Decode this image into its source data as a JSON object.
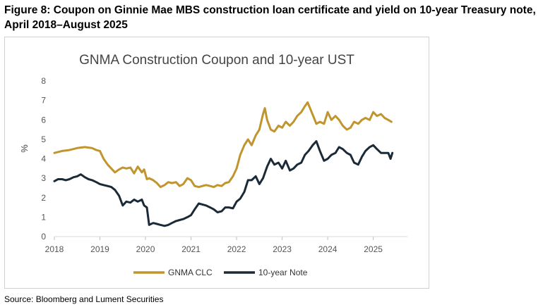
{
  "figure": {
    "caption": "Figure 8: Coupon on Ginnie Mae MBS construction loan certificate and yield on 10-year Treasury note, April 2018–August 2025",
    "source": "Source: Bloomberg and Lument Securities"
  },
  "chart_data": {
    "type": "line",
    "title": "GNMA Construction Coupon and 10-year UST",
    "xlabel": "",
    "ylabel": "%",
    "xlim": [
      2018,
      2025.75
    ],
    "ylim": [
      0,
      8
    ],
    "x_ticks": [
      "2018",
      "2019",
      "2020",
      "2021",
      "2022",
      "2023",
      "2024",
      "2025"
    ],
    "y_ticks": [
      "0",
      "1",
      "2",
      "3",
      "4",
      "5",
      "6",
      "7",
      "8"
    ],
    "grid": false,
    "legend": "bottom",
    "series": [
      {
        "name": "GNMA CLC",
        "color": "#c0952e",
        "points": [
          [
            2018.0,
            4.3
          ],
          [
            2018.17,
            4.4
          ],
          [
            2018.33,
            4.45
          ],
          [
            2018.5,
            4.55
          ],
          [
            2018.67,
            4.6
          ],
          [
            2018.83,
            4.55
          ],
          [
            2018.92,
            4.45
          ],
          [
            2019.0,
            4.4
          ],
          [
            2019.08,
            4.0
          ],
          [
            2019.17,
            3.7
          ],
          [
            2019.25,
            3.5
          ],
          [
            2019.33,
            3.3
          ],
          [
            2019.42,
            3.45
          ],
          [
            2019.5,
            3.55
          ],
          [
            2019.58,
            3.5
          ],
          [
            2019.67,
            3.55
          ],
          [
            2019.75,
            3.25
          ],
          [
            2019.83,
            3.6
          ],
          [
            2019.92,
            3.3
          ],
          [
            2019.97,
            3.45
          ],
          [
            2020.03,
            2.95
          ],
          [
            2020.08,
            3.0
          ],
          [
            2020.17,
            2.9
          ],
          [
            2020.25,
            2.75
          ],
          [
            2020.33,
            2.55
          ],
          [
            2020.42,
            2.65
          ],
          [
            2020.5,
            2.8
          ],
          [
            2020.58,
            2.75
          ],
          [
            2020.67,
            2.8
          ],
          [
            2020.75,
            2.6
          ],
          [
            2020.83,
            2.7
          ],
          [
            2020.92,
            3.0
          ],
          [
            2021.0,
            2.9
          ],
          [
            2021.08,
            2.6
          ],
          [
            2021.17,
            2.55
          ],
          [
            2021.25,
            2.6
          ],
          [
            2021.33,
            2.65
          ],
          [
            2021.42,
            2.6
          ],
          [
            2021.5,
            2.55
          ],
          [
            2021.58,
            2.65
          ],
          [
            2021.67,
            2.6
          ],
          [
            2021.75,
            2.75
          ],
          [
            2021.83,
            2.8
          ],
          [
            2021.92,
            3.1
          ],
          [
            2022.0,
            3.5
          ],
          [
            2022.08,
            4.2
          ],
          [
            2022.17,
            4.7
          ],
          [
            2022.25,
            5.0
          ],
          [
            2022.33,
            4.7
          ],
          [
            2022.42,
            5.2
          ],
          [
            2022.5,
            5.5
          ],
          [
            2022.58,
            6.3
          ],
          [
            2022.62,
            6.6
          ],
          [
            2022.67,
            6.0
          ],
          [
            2022.75,
            5.5
          ],
          [
            2022.83,
            5.4
          ],
          [
            2022.92,
            5.7
          ],
          [
            2023.0,
            5.6
          ],
          [
            2023.08,
            5.9
          ],
          [
            2023.17,
            5.7
          ],
          [
            2023.25,
            5.9
          ],
          [
            2023.33,
            6.2
          ],
          [
            2023.42,
            6.4
          ],
          [
            2023.5,
            6.7
          ],
          [
            2023.56,
            6.9
          ],
          [
            2023.63,
            6.5
          ],
          [
            2023.7,
            6.1
          ],
          [
            2023.75,
            5.8
          ],
          [
            2023.83,
            5.9
          ],
          [
            2023.92,
            5.8
          ],
          [
            2024.0,
            6.4
          ],
          [
            2024.08,
            6.0
          ],
          [
            2024.17,
            6.2
          ],
          [
            2024.25,
            6.0
          ],
          [
            2024.33,
            5.7
          ],
          [
            2024.42,
            5.5
          ],
          [
            2024.5,
            5.6
          ],
          [
            2024.58,
            5.9
          ],
          [
            2024.67,
            5.8
          ],
          [
            2024.75,
            6.0
          ],
          [
            2024.83,
            6.1
          ],
          [
            2024.92,
            6.0
          ],
          [
            2025.0,
            6.4
          ],
          [
            2025.08,
            6.2
          ],
          [
            2025.17,
            6.3
          ],
          [
            2025.25,
            6.1
          ],
          [
            2025.33,
            6.0
          ],
          [
            2025.4,
            5.9
          ]
        ]
      },
      {
        "name": "10-year Note",
        "color": "#1b2a38",
        "points": [
          [
            2018.0,
            2.85
          ],
          [
            2018.08,
            2.95
          ],
          [
            2018.17,
            2.95
          ],
          [
            2018.25,
            2.9
          ],
          [
            2018.33,
            2.95
          ],
          [
            2018.42,
            3.05
          ],
          [
            2018.5,
            3.1
          ],
          [
            2018.58,
            3.2
          ],
          [
            2018.67,
            3.05
          ],
          [
            2018.75,
            2.95
          ],
          [
            2018.83,
            2.9
          ],
          [
            2018.92,
            2.8
          ],
          [
            2019.0,
            2.7
          ],
          [
            2019.08,
            2.65
          ],
          [
            2019.17,
            2.6
          ],
          [
            2019.25,
            2.55
          ],
          [
            2019.33,
            2.4
          ],
          [
            2019.42,
            2.1
          ],
          [
            2019.5,
            1.6
          ],
          [
            2019.58,
            1.8
          ],
          [
            2019.67,
            1.75
          ],
          [
            2019.75,
            1.9
          ],
          [
            2019.83,
            1.8
          ],
          [
            2019.92,
            1.9
          ],
          [
            2019.97,
            1.6
          ],
          [
            2020.03,
            1.5
          ],
          [
            2020.08,
            0.6
          ],
          [
            2020.17,
            0.7
          ],
          [
            2020.25,
            0.65
          ],
          [
            2020.33,
            0.6
          ],
          [
            2020.42,
            0.55
          ],
          [
            2020.5,
            0.6
          ],
          [
            2020.58,
            0.7
          ],
          [
            2020.67,
            0.8
          ],
          [
            2020.75,
            0.85
          ],
          [
            2020.83,
            0.9
          ],
          [
            2020.92,
            1.0
          ],
          [
            2021.0,
            1.1
          ],
          [
            2021.08,
            1.4
          ],
          [
            2021.17,
            1.7
          ],
          [
            2021.25,
            1.65
          ],
          [
            2021.33,
            1.6
          ],
          [
            2021.42,
            1.5
          ],
          [
            2021.5,
            1.4
          ],
          [
            2021.58,
            1.25
          ],
          [
            2021.67,
            1.3
          ],
          [
            2021.75,
            1.5
          ],
          [
            2021.83,
            1.5
          ],
          [
            2021.92,
            1.45
          ],
          [
            2022.0,
            1.8
          ],
          [
            2022.08,
            1.95
          ],
          [
            2022.17,
            2.3
          ],
          [
            2022.25,
            2.9
          ],
          [
            2022.33,
            2.9
          ],
          [
            2022.42,
            3.1
          ],
          [
            2022.5,
            2.7
          ],
          [
            2022.58,
            3.0
          ],
          [
            2022.67,
            3.6
          ],
          [
            2022.75,
            4.0
          ],
          [
            2022.83,
            3.7
          ],
          [
            2022.92,
            3.8
          ],
          [
            2023.0,
            3.5
          ],
          [
            2023.08,
            3.9
          ],
          [
            2023.17,
            3.4
          ],
          [
            2023.25,
            3.5
          ],
          [
            2023.33,
            3.7
          ],
          [
            2023.42,
            3.8
          ],
          [
            2023.5,
            4.2
          ],
          [
            2023.58,
            4.4
          ],
          [
            2023.67,
            4.7
          ],
          [
            2023.75,
            4.9
          ],
          [
            2023.83,
            4.4
          ],
          [
            2023.92,
            3.9
          ],
          [
            2024.0,
            4.0
          ],
          [
            2024.08,
            4.2
          ],
          [
            2024.17,
            4.3
          ],
          [
            2024.25,
            4.6
          ],
          [
            2024.33,
            4.5
          ],
          [
            2024.42,
            4.3
          ],
          [
            2024.5,
            4.2
          ],
          [
            2024.58,
            3.8
          ],
          [
            2024.67,
            3.7
          ],
          [
            2024.75,
            4.1
          ],
          [
            2024.83,
            4.4
          ],
          [
            2024.92,
            4.6
          ],
          [
            2025.0,
            4.7
          ],
          [
            2025.08,
            4.5
          ],
          [
            2025.17,
            4.3
          ],
          [
            2025.25,
            4.3
          ],
          [
            2025.33,
            4.3
          ],
          [
            2025.38,
            4.0
          ],
          [
            2025.42,
            4.3
          ]
        ]
      }
    ]
  }
}
